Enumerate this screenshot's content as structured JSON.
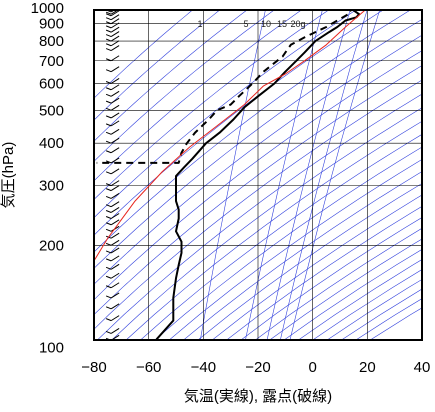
{
  "chart_data": {
    "type": "line",
    "chart_kind": "Emagram",
    "xlabel": "気温(実線), 露点(破線)",
    "ylabel": "気圧(hPa)",
    "xlim": [
      -80,
      40
    ],
    "ylim": [
      1050,
      100
    ],
    "y_scale": "log",
    "x_ticks": [
      "−80",
      "−60",
      "−40",
      "−20",
      "0",
      "20",
      "40"
    ],
    "x_tick_values": [
      -80,
      -60,
      -40,
      -20,
      0,
      20,
      40
    ],
    "y_ticks": [
      "100",
      "200",
      "300",
      "400",
      "500",
      "600",
      "700",
      "800",
      "900",
      "1000"
    ],
    "y_tick_values": [
      100,
      200,
      300,
      400,
      500,
      600,
      700,
      800,
      900,
      1000
    ],
    "mixing_ratio_labels": [
      "1",
      "5",
      "10",
      "15",
      "20g"
    ],
    "mixing_ratio_values": [
      1,
      5,
      10,
      15,
      20
    ],
    "colors": {
      "temperature": "#000000",
      "dewpoint": "#000000",
      "parcel": "#e8261f",
      "adiabats": "#3342dd",
      "grid": "#000000"
    },
    "series": [
      {
        "role": "temperature",
        "style": "solid",
        "points": [
          [
            14,
            1000
          ],
          [
            15,
            985
          ],
          [
            17,
            960
          ],
          [
            16,
            940
          ],
          [
            12,
            920
          ],
          [
            9,
            880
          ],
          [
            6,
            850
          ],
          [
            1,
            800
          ],
          [
            -3,
            740
          ],
          [
            -6,
            700
          ],
          [
            -10,
            650
          ],
          [
            -14,
            600
          ],
          [
            -20,
            550
          ],
          [
            -25,
            510
          ],
          [
            -29,
            470
          ],
          [
            -34,
            430
          ],
          [
            -39,
            400
          ],
          [
            -44,
            360
          ],
          [
            -47,
            340
          ],
          [
            -50,
            320
          ],
          [
            -50,
            305
          ],
          [
            -50,
            290
          ],
          [
            -50,
            270
          ],
          [
            -49,
            255
          ],
          [
            -49,
            240
          ],
          [
            -50,
            220
          ],
          [
            -48,
            205
          ],
          [
            -48,
            190
          ],
          [
            -49,
            175
          ],
          [
            -50,
            160
          ],
          [
            -51,
            140
          ],
          [
            -51,
            120
          ],
          [
            -57,
            106
          ],
          [
            -58,
            102
          ],
          [
            -57,
            100
          ]
        ]
      },
      {
        "role": "dewpoint",
        "style": "dashed",
        "points": [
          [
            12,
            1000
          ],
          [
            14,
            985
          ],
          [
            13,
            975
          ],
          [
            13,
            960
          ],
          [
            9,
            920
          ],
          [
            5,
            880
          ],
          [
            1,
            850
          ],
          [
            -3,
            820
          ],
          [
            -8,
            780
          ],
          [
            -10,
            740
          ],
          [
            -11,
            720
          ],
          [
            -13,
            700
          ],
          [
            -18,
            650
          ],
          [
            -22,
            600
          ],
          [
            -27,
            550
          ],
          [
            -30,
            520
          ],
          [
            -35,
            500
          ],
          [
            -38,
            470
          ],
          [
            -43,
            430
          ],
          [
            -46,
            400
          ],
          [
            -48,
            375
          ],
          [
            -49,
            350
          ],
          [
            -79,
            350
          ]
        ]
      },
      {
        "role": "parcel",
        "style": "solid",
        "points": [
          [
            20,
            1000
          ],
          [
            12,
            880
          ],
          [
            5,
            780
          ],
          [
            -3,
            700
          ],
          [
            -10,
            640
          ],
          [
            -18,
            590
          ],
          [
            -25,
            520
          ],
          [
            -35,
            450
          ],
          [
            -45,
            390
          ],
          [
            -55,
            330
          ],
          [
            -65,
            270
          ],
          [
            -75,
            210
          ],
          [
            -80,
            180
          ]
        ]
      }
    ],
    "wind_barbs_pressures": [
      1000,
      990,
      975,
      960,
      950,
      925,
      900,
      875,
      850,
      825,
      800,
      775,
      750,
      700,
      650,
      600,
      575,
      550,
      525,
      500,
      475,
      450,
      425,
      400,
      375,
      350,
      325,
      300,
      290,
      275,
      260,
      250,
      240,
      230,
      220,
      210,
      200,
      190,
      180,
      170,
      160,
      150,
      140,
      130,
      120,
      110,
      105,
      100
    ]
  }
}
